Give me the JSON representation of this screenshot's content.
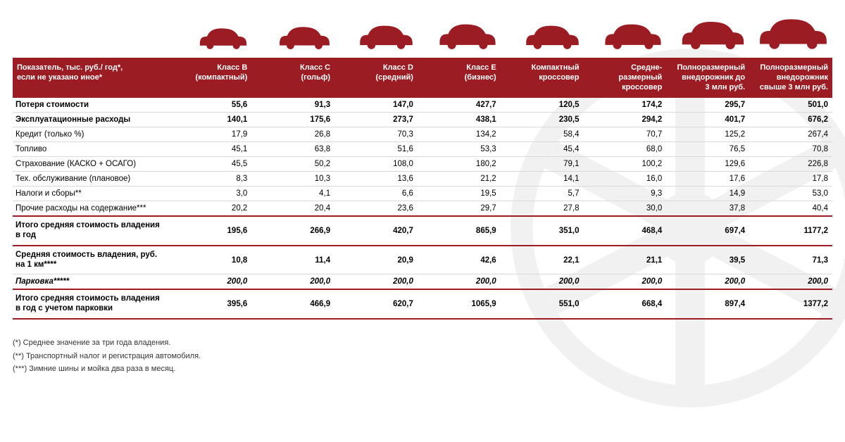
{
  "colors": {
    "brand": "#9b1c23",
    "row_border": "#d9d9d9",
    "background": "#ffffff",
    "text": "#000000"
  },
  "typography": {
    "font_family": "Arial",
    "header_fontsize_pt": 8,
    "body_fontsize_pt": 8.5
  },
  "table": {
    "header_label": "Показатель, тыс. руб./ год*,\nесли не указано иное*",
    "columns": [
      {
        "id": "b",
        "line1": "Класс B",
        "line2": "(компактный)",
        "car_scale": 0.8
      },
      {
        "id": "c",
        "line1": "Класс С",
        "line2": "(гольф)",
        "car_scale": 0.85
      },
      {
        "id": "d",
        "line1": "Класс D",
        "line2": "(средний)",
        "car_scale": 0.9
      },
      {
        "id": "e",
        "line1": "Класс E",
        "line2": "(бизнес)",
        "car_scale": 0.95
      },
      {
        "id": "cuv",
        "line1": "Компактный",
        "line2": "кроссовер",
        "car_scale": 0.9
      },
      {
        "id": "mcv",
        "line1": "Средне-",
        "line2": "размерный",
        "line3": "кроссовер",
        "car_scale": 0.95
      },
      {
        "id": "suv1",
        "line1": "Полноразмерный",
        "line2": "внедорожник до",
        "line3": "3 млн руб.",
        "car_scale": 1.05
      },
      {
        "id": "suv2",
        "line1": "Полноразмерный",
        "line2": "внедорожник",
        "line3": "свыше 3 млн руб.",
        "car_scale": 1.15
      }
    ],
    "rows": [
      {
        "label": "Потеря стоимости",
        "bold": true,
        "values": [
          "55,6",
          "91,3",
          "147,0",
          "427,7",
          "120,5",
          "174,2",
          "295,7",
          "501,0"
        ]
      },
      {
        "label": "Эксплуатационные расходы",
        "bold": true,
        "values": [
          "140,1",
          "175,6",
          "273,7",
          "438,1",
          "230,5",
          "294,2",
          "401,7",
          "676,2"
        ]
      },
      {
        "label": "Кредит (только %)",
        "values": [
          "17,9",
          "26,8",
          "70,3",
          "134,2",
          "58,4",
          "70,7",
          "125,2",
          "267,4"
        ]
      },
      {
        "label": "Топливо",
        "values": [
          "45,1",
          "63,8",
          "51,6",
          "53,3",
          "45,4",
          "68,0",
          "76,5",
          "70,8"
        ]
      },
      {
        "label": "Страхование (КАСКО + ОСАГО)",
        "values": [
          "45,5",
          "50,2",
          "108,0",
          "180,2",
          "79,1",
          "100,2",
          "129,6",
          "226,8"
        ]
      },
      {
        "label": "Тех. обслуживание (плановое)",
        "values": [
          "8,3",
          "10,3",
          "13,6",
          "21,2",
          "14,1",
          "16,0",
          "17,6",
          "17,8"
        ]
      },
      {
        "label": "Налоги и сборы**",
        "values": [
          "3,0",
          "4,1",
          "6,6",
          "19,5",
          "5,7",
          "9,3",
          "14,9",
          "53,0"
        ]
      },
      {
        "label": "Прочие расходы на содержание***",
        "values": [
          "20,2",
          "20,4",
          "23,6",
          "29,7",
          "27,8",
          "30,0",
          "37,8",
          "40,4"
        ]
      },
      {
        "label": "Итого средняя стоимость владения в год",
        "bold": true,
        "sep_top": true,
        "sep_bot": true,
        "multi": true,
        "values": [
          "195,6",
          "266,9",
          "420,7",
          "865,9",
          "351,0",
          "468,4",
          "697,4",
          "1177,2"
        ]
      },
      {
        "label": "Средняя стоимость владения, руб. на 1 км****",
        "bold": true,
        "multi": true,
        "values": [
          "10,8",
          "11,4",
          "20,9",
          "42,6",
          "22,1",
          "21,1",
          "39,5",
          "71,3"
        ]
      },
      {
        "label": "Парковка*****",
        "bold": true,
        "italic": true,
        "values": [
          "200,0",
          "200,0",
          "200,0",
          "200,0",
          "200,0",
          "200,0",
          "200,0",
          "200,0"
        ]
      },
      {
        "label": "Итого средняя стоимость владения в год с учетом парковки",
        "bold": true,
        "sep_top": true,
        "sep_bot": true,
        "multi": true,
        "values": [
          "395,6",
          "466,9",
          "620,7",
          "1065,9",
          "551,0",
          "668,4",
          "897,4",
          "1377,2"
        ]
      }
    ]
  },
  "footnotes": [
    "(*) Среднее значение за три года владения.",
    "(**) Транспортный налог и регистрация автомобиля.",
    "(***) Зимние шины и мойка два раза в месяц."
  ]
}
